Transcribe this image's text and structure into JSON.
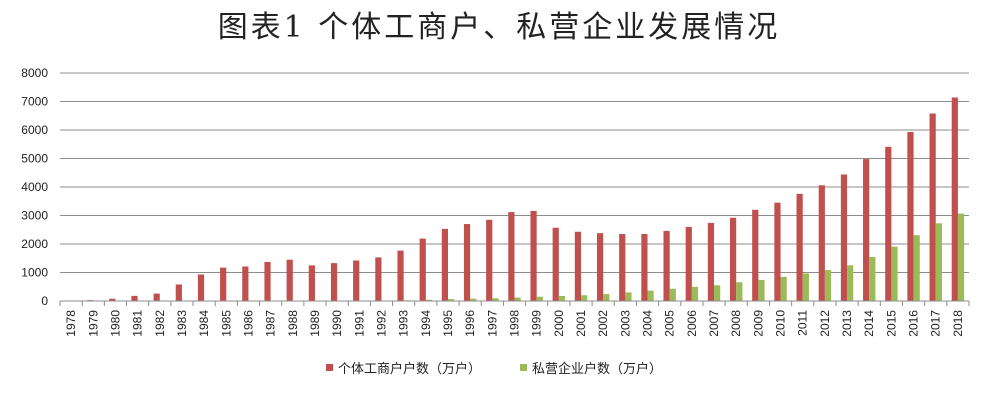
{
  "chart_data": {
    "type": "bar",
    "title": "图表1  个体工商户、私营企业发展情况",
    "xlabel": "",
    "ylabel": "",
    "ylim": [
      0,
      8000
    ],
    "yticks": [
      0,
      1000,
      2000,
      3000,
      4000,
      5000,
      6000,
      7000,
      8000
    ],
    "grid": true,
    "legend_position": "bottom",
    "categories": [
      "1978",
      "1979",
      "1980",
      "1981",
      "1982",
      "1983",
      "1984",
      "1985",
      "1986",
      "1987",
      "1988",
      "1989",
      "1990",
      "1991",
      "1992",
      "1993",
      "1994",
      "1995",
      "1996",
      "1997",
      "1998",
      "1999",
      "2000",
      "2001",
      "2002",
      "2003",
      "2004",
      "2005",
      "2006",
      "2007",
      "2008",
      "2009",
      "2010",
      "2011",
      "2012",
      "2013",
      "2014",
      "2015",
      "2016",
      "2017",
      "2018"
    ],
    "series": [
      {
        "name": "个体工商户户数（万户）",
        "color": "#c0504d",
        "values": [
          15,
          30,
          80,
          180,
          260,
          580,
          930,
          1170,
          1210,
          1370,
          1450,
          1250,
          1330,
          1420,
          1530,
          1770,
          2190,
          2530,
          2700,
          2850,
          3120,
          3160,
          2570,
          2430,
          2380,
          2350,
          2350,
          2460,
          2600,
          2740,
          2920,
          3200,
          3450,
          3760,
          4060,
          4440,
          4980,
          5410,
          5930,
          6580,
          7140
        ]
      },
      {
        "name": "私营企业户数（万户）",
        "color": "#9bbb59",
        "values": [
          0,
          0,
          0,
          0,
          0,
          0,
          0,
          0,
          0,
          0,
          5,
          10,
          10,
          11,
          14,
          24,
          43,
          65,
          82,
          96,
          120,
          150,
          176,
          203,
          244,
          301,
          365,
          430,
          498,
          551,
          657,
          740,
          846,
          968,
          1086,
          1254,
          1546,
          1908,
          2309,
          2726,
          3067
        ]
      }
    ]
  }
}
